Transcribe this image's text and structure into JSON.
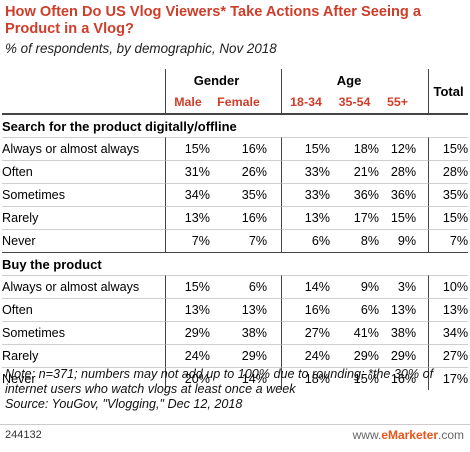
{
  "title": "How Often Do US Vlog Viewers* Take Actions After Seeing a Product in a Vlog?",
  "subtitle": "% of respondents, by demographic, Nov 2018",
  "chart_data": {
    "type": "table",
    "group_headers": [
      "Gender",
      "Age",
      "Total"
    ],
    "columns": [
      "Male",
      "Female",
      "18-34",
      "35-54",
      "55+",
      "Total"
    ],
    "sections": [
      {
        "name": "Search for the product digitally/offline",
        "rows": [
          {
            "label": "Always or almost always",
            "values": [
              "15%",
              "16%",
              "15%",
              "18%",
              "12%",
              "15%"
            ]
          },
          {
            "label": "Often",
            "values": [
              "31%",
              "26%",
              "33%",
              "21%",
              "28%",
              "28%"
            ]
          },
          {
            "label": "Sometimes",
            "values": [
              "34%",
              "35%",
              "33%",
              "36%",
              "36%",
              "35%"
            ]
          },
          {
            "label": "Rarely",
            "values": [
              "13%",
              "16%",
              "13%",
              "17%",
              "15%",
              "15%"
            ]
          },
          {
            "label": "Never",
            "values": [
              "7%",
              "7%",
              "6%",
              "8%",
              "9%",
              "7%"
            ]
          }
        ]
      },
      {
        "name": "Buy the product",
        "rows": [
          {
            "label": "Always or almost always",
            "values": [
              "15%",
              "6%",
              "14%",
              "9%",
              "3%",
              "10%"
            ]
          },
          {
            "label": "Often",
            "values": [
              "13%",
              "13%",
              "16%",
              "6%",
              "13%",
              "13%"
            ]
          },
          {
            "label": "Sometimes",
            "values": [
              "29%",
              "38%",
              "27%",
              "41%",
              "38%",
              "34%"
            ]
          },
          {
            "label": "Rarely",
            "values": [
              "24%",
              "29%",
              "24%",
              "29%",
              "29%",
              "27%"
            ]
          },
          {
            "label": "Never",
            "values": [
              "20%",
              "14%",
              "18%",
              "15%",
              "16%",
              "17%"
            ]
          }
        ]
      }
    ]
  },
  "note": "Note: n=371; numbers may not add up to 100% due to rounding; *the 30% of internet users who watch vlogs at least once a week",
  "source": "Source: YouGov, \"Vlogging,\" Dec 12, 2018",
  "footer_id": "244132",
  "logo_prefix": "www.",
  "logo_brand": "eMarketer",
  "logo_suffix": ".com",
  "colors": {
    "accent": "#ce3e2a",
    "logo": "#e5551a"
  }
}
